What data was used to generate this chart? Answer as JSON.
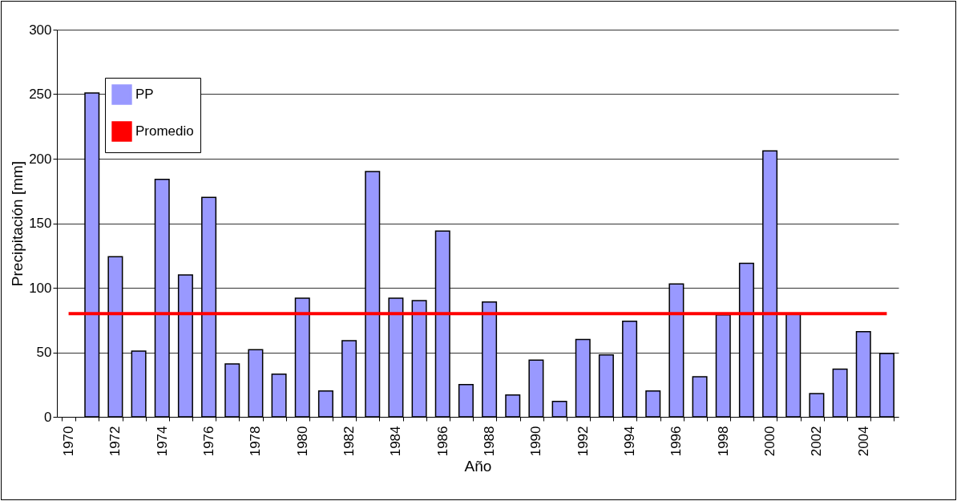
{
  "chart_data": {
    "type": "bar",
    "xlabel": "Año",
    "ylabel": "Precipitación [mm]",
    "categories": [
      "1970",
      null,
      "1972",
      null,
      "1974",
      null,
      "1976",
      null,
      "1978",
      null,
      "1980",
      null,
      "1982",
      null,
      "1984",
      null,
      "1986",
      null,
      "1988",
      null,
      "1990",
      null,
      "1992",
      null,
      "1994",
      null,
      "1996",
      null,
      "1998",
      null,
      "2000",
      null,
      "2002",
      null,
      "2004",
      null
    ],
    "series": [
      {
        "name": "PP",
        "color": "#9999ff",
        "values": [
          null,
          251,
          124,
          51,
          184,
          110,
          170,
          41,
          52,
          33,
          92,
          20,
          59,
          190,
          92,
          90,
          144,
          25,
          89,
          17,
          44,
          12,
          60,
          48,
          74,
          20,
          103,
          31,
          79,
          119,
          206,
          80,
          18,
          37,
          66,
          49
        ]
      },
      {
        "name": "Promedio",
        "type": "line",
        "color": "#ff0000",
        "values": [
          80,
          80,
          80,
          80,
          80,
          80,
          80,
          80,
          80,
          80,
          80,
          80,
          80,
          80,
          80,
          80,
          80,
          80,
          80,
          80,
          80,
          80,
          80,
          80,
          80,
          80,
          80,
          80,
          80,
          80,
          80,
          80,
          80,
          80,
          80,
          80
        ]
      }
    ],
    "ylim": [
      0,
      300
    ],
    "yticks": [
      0,
      50,
      100,
      150,
      200,
      250,
      300
    ],
    "grid": "y",
    "legend": "top left"
  }
}
